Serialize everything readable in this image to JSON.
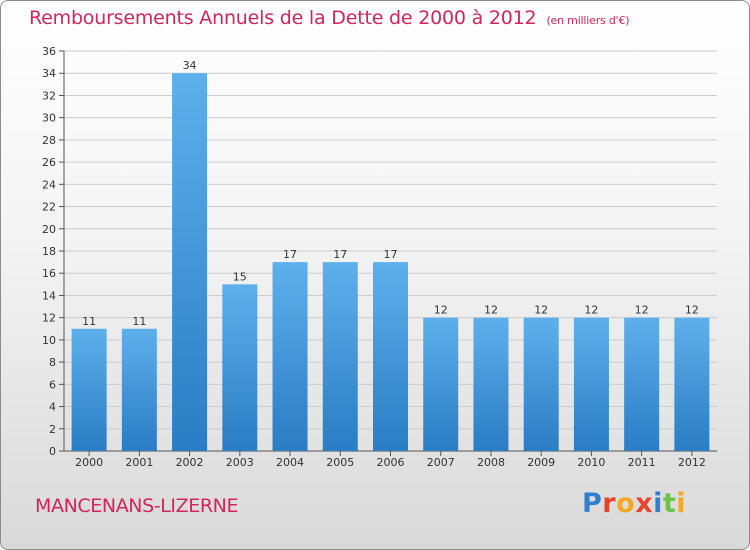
{
  "title": "Remboursements Annuels de la Dette de 2000 à 2012",
  "subtitle": "(en milliers d'€)",
  "commune": "MANCENANS-LIZERNE",
  "logo_text": "Proxiti",
  "colors": {
    "title": "#d2265a",
    "bar_top": "#5eb0ec",
    "bar_bottom": "#2a7cc4",
    "grid": "#cccccc"
  },
  "chart_data": {
    "type": "bar",
    "title": "Remboursements Annuels de la Dette de 2000 à 2012",
    "subtitle": "(en milliers d'€)",
    "xlabel": "",
    "ylabel": "",
    "categories": [
      "2000",
      "2001",
      "2002",
      "2003",
      "2004",
      "2005",
      "2006",
      "2007",
      "2008",
      "2009",
      "2010",
      "2011",
      "2012"
    ],
    "values": [
      11,
      11,
      34,
      15,
      17,
      17,
      17,
      12,
      12,
      12,
      12,
      12,
      12
    ],
    "ylim": [
      0,
      36
    ],
    "yticks": [
      0,
      2,
      4,
      6,
      8,
      10,
      12,
      14,
      16,
      18,
      20,
      22,
      24,
      26,
      28,
      30,
      32,
      34,
      36
    ],
    "grid": true,
    "data_labels": true
  }
}
